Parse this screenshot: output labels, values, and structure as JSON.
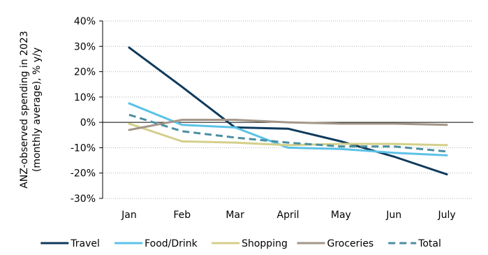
{
  "chart_data": {
    "type": "line",
    "title": "",
    "xlabel": "",
    "ylabel": "ANZ-observed spending in 2023 (monthly average), % y/y",
    "ylabel_lines": [
      "ANZ-observed spending in 2023",
      "(monthly average), % y/y"
    ],
    "categories": [
      "Jan",
      "Feb",
      "Mar",
      "April",
      "May",
      "Jun",
      "July"
    ],
    "ylim": [
      -30,
      40
    ],
    "yticks": [
      -30,
      -20,
      -10,
      0,
      10,
      20,
      30,
      40
    ],
    "ytick_labels": [
      "-30%",
      "-20%",
      "-10%",
      "0%",
      "10%",
      "20%",
      "30%",
      "40%"
    ],
    "grid": true,
    "legend_position": "bottom",
    "series": [
      {
        "name": "Travel",
        "color": "#0e3a5c",
        "dash": "solid",
        "values": [
          29.5,
          14.0,
          -2.0,
          -2.5,
          -7.5,
          -13.5,
          -20.5
        ]
      },
      {
        "name": "Food/Drink",
        "color": "#5bc2e7",
        "dash": "solid",
        "values": [
          7.5,
          -1.0,
          -2.0,
          -10.0,
          -10.5,
          -12.0,
          -13.0
        ]
      },
      {
        "name": "Shopping",
        "color": "#d4cf8a",
        "dash": "solid",
        "values": [
          -0.5,
          -7.5,
          -8.0,
          -9.0,
          -8.5,
          -8.5,
          -9.0
        ]
      },
      {
        "name": "Groceries",
        "color": "#a39689",
        "dash": "solid",
        "values": [
          -3.0,
          1.0,
          1.0,
          0.0,
          -0.5,
          -0.5,
          -1.0
        ]
      },
      {
        "name": "Total",
        "color": "#4a8fa0",
        "dash": "dashed",
        "values": [
          3.0,
          -3.5,
          -6.0,
          -8.0,
          -9.5,
          -9.5,
          -11.5
        ]
      }
    ]
  }
}
